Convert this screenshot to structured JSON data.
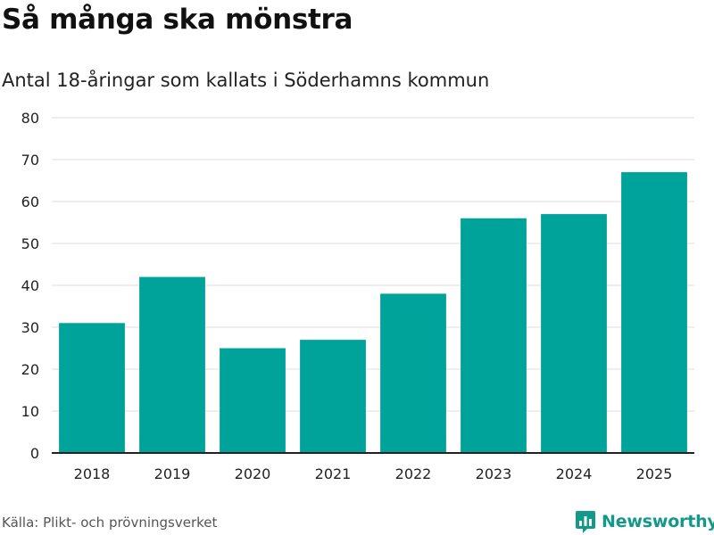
{
  "header": {
    "title": "Så många ska mönstra",
    "subtitle": "Antal 18-åringar som kallats i Söderhamns kommun"
  },
  "footer": {
    "source": "Källa: Plikt- och prövningsverket",
    "brand": "Newsworthy"
  },
  "colors": {
    "bar": "#00a39a",
    "brand": "#13998a",
    "grid": "#dcdcdc",
    "axis": "#222222",
    "text": "#222222"
  },
  "chart_data": {
    "type": "bar",
    "title": "Så många ska mönstra",
    "subtitle": "Antal 18-åringar som kallats i Söderhamns kommun",
    "xlabel": "",
    "ylabel": "",
    "categories": [
      "2018",
      "2019",
      "2020",
      "2021",
      "2022",
      "2023",
      "2024",
      "2025"
    ],
    "values": [
      31,
      42,
      25,
      27,
      38,
      56,
      57,
      67
    ],
    "ylim": [
      0,
      80
    ],
    "yticks": [
      0,
      10,
      20,
      30,
      40,
      50,
      60,
      70,
      80
    ],
    "grid": true,
    "legend": "none"
  }
}
